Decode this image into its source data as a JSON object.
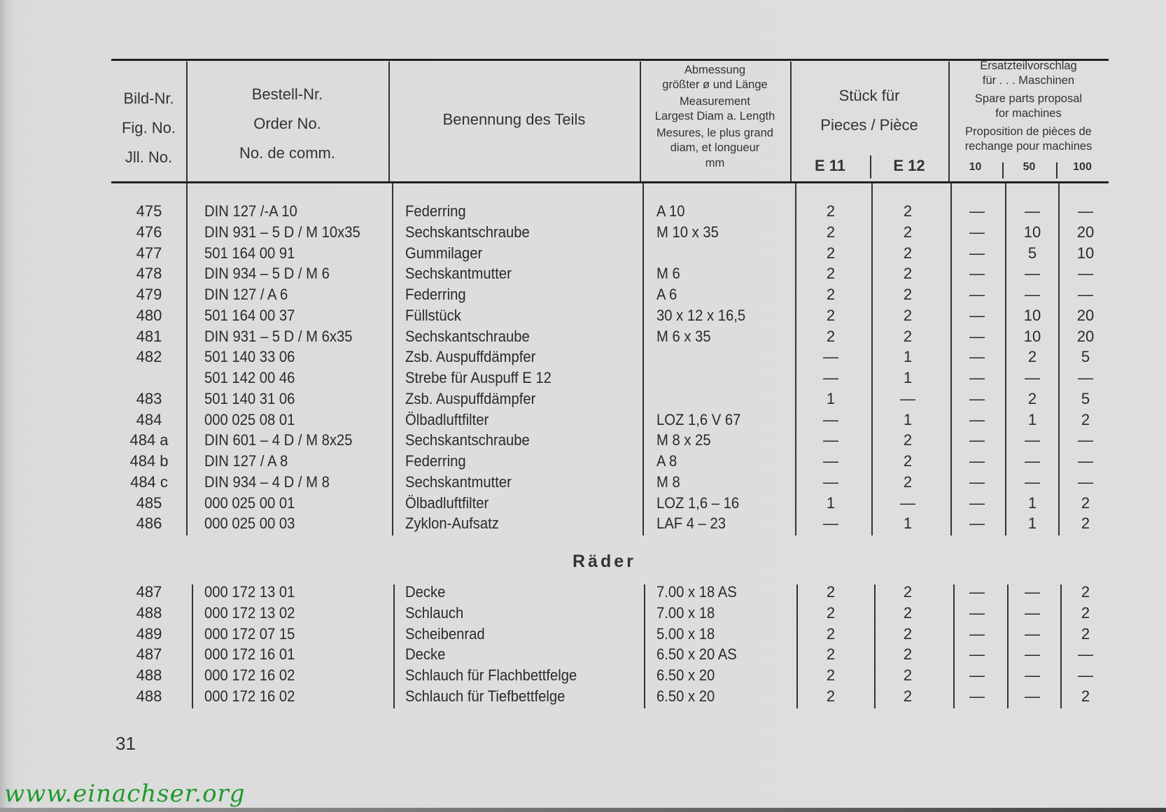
{
  "header": {
    "fig_no": [
      "Bild-Nr.",
      "Fig. No.",
      "Jll. No."
    ],
    "order_no": [
      "Bestell-Nr.",
      "Order No.",
      "No. de comm."
    ],
    "part_name": "Benennung des Teils",
    "measurement": [
      "Abmessung",
      "größter ø und Länge",
      "Measurement",
      "Largest Diam a. Length",
      "Mesures, le plus grand",
      "diam, et longueur",
      "mm"
    ],
    "pieces": [
      "Stück für",
      "Pieces / Pièce"
    ],
    "pieces_cols": [
      "E 11",
      "E 12"
    ],
    "spare": [
      "Ersatzteilvorschlag",
      "für . . . Maschinen",
      "Spare parts proposal",
      "for machines",
      "Proposition de pièces de",
      "rechange pour machines"
    ],
    "spare_cols": [
      "10",
      "50",
      "100"
    ]
  },
  "rows": [
    {
      "fig": "475",
      "order": "DIN 127 /-A 10",
      "name": "Federring",
      "measure": "A 10",
      "e11": "2",
      "e12": "2",
      "p10": "—",
      "p50": "—",
      "p100": "—"
    },
    {
      "fig": "476",
      "order": "DIN 931 – 5 D / M 10x35",
      "name": "Sechskantschraube",
      "measure": "M 10 x 35",
      "e11": "2",
      "e12": "2",
      "p10": "—",
      "p50": "10",
      "p100": "20"
    },
    {
      "fig": "477",
      "order": "501 164 00 91",
      "name": "Gummilager",
      "measure": "",
      "e11": "2",
      "e12": "2",
      "p10": "—",
      "p50": "5",
      "p100": "10"
    },
    {
      "fig": "478",
      "order": "DIN 934 – 5 D / M 6",
      "name": "Sechskantmutter",
      "measure": "M 6",
      "e11": "2",
      "e12": "2",
      "p10": "—",
      "p50": "—",
      "p100": "—"
    },
    {
      "fig": "479",
      "order": "DIN 127 / A 6",
      "name": "Federring",
      "measure": "A 6",
      "e11": "2",
      "e12": "2",
      "p10": "—",
      "p50": "—",
      "p100": "—"
    },
    {
      "fig": "480",
      "order": "501 164 00 37",
      "name": "Füllstück",
      "measure": "30 x 12 x 16,5",
      "e11": "2",
      "e12": "2",
      "p10": "—",
      "p50": "10",
      "p100": "20"
    },
    {
      "fig": "481",
      "order": "DIN 931 – 5 D / M 6x35",
      "name": "Sechskantschraube",
      "measure": "M 6 x 35",
      "e11": "2",
      "e12": "2",
      "p10": "—",
      "p50": "10",
      "p100": "20"
    },
    {
      "fig": "482",
      "order": "501 140 33 06",
      "name": "Zsb. Auspuffdämpfer",
      "measure": "",
      "e11": "—",
      "e12": "1",
      "p10": "—",
      "p50": "2",
      "p100": "5"
    },
    {
      "fig": "",
      "order": "501 142 00 46",
      "name": "Strebe für Auspuff E 12",
      "measure": "",
      "e11": "—",
      "e12": "1",
      "p10": "—",
      "p50": "—",
      "p100": "—"
    },
    {
      "fig": "483",
      "order": "501 140 31 06",
      "name": "Zsb. Auspuffdämpfer",
      "measure": "",
      "e11": "1",
      "e12": "—",
      "p10": "—",
      "p50": "2",
      "p100": "5"
    },
    {
      "fig": "484",
      "order": "000 025 08 01",
      "name": "Ölbadluftfilter",
      "measure": "LOZ 1,6 V 67",
      "e11": "—",
      "e12": "1",
      "p10": "—",
      "p50": "1",
      "p100": "2"
    },
    {
      "fig": "484 a",
      "order": "DIN 601 – 4 D / M 8x25",
      "name": "Sechskantschraube",
      "measure": "M 8 x 25",
      "e11": "—",
      "e12": "2",
      "p10": "—",
      "p50": "—",
      "p100": "—"
    },
    {
      "fig": "484 b",
      "order": "DIN 127 / A 8",
      "name": "Federring",
      "measure": "A 8",
      "e11": "—",
      "e12": "2",
      "p10": "—",
      "p50": "—",
      "p100": "—"
    },
    {
      "fig": "484 c",
      "order": "DIN 934 – 4 D / M 8",
      "name": "Sechskantmutter",
      "measure": "M 8",
      "e11": "—",
      "e12": "2",
      "p10": "—",
      "p50": "—",
      "p100": "—"
    },
    {
      "fig": "485",
      "order": "000 025 00 01",
      "name": "Ölbadluftfilter",
      "measure": "LOZ 1,6 – 16",
      "e11": "1",
      "e12": "—",
      "p10": "—",
      "p50": "1",
      "p100": "2"
    },
    {
      "fig": "486",
      "order": "000 025 00 03",
      "name": "Zyklon-Aufsatz",
      "measure": "LAF 4 – 23",
      "e11": "—",
      "e12": "1",
      "p10": "—",
      "p50": "1",
      "p100": "2"
    }
  ],
  "section_title": "Räder",
  "rows2": [
    {
      "fig": "487",
      "order": "000 172 13 01",
      "name": "Decke",
      "measure": "7.00 x 18 AS",
      "e11": "2",
      "e12": "2",
      "p10": "—",
      "p50": "—",
      "p100": "2"
    },
    {
      "fig": "488",
      "order": "000 172 13 02",
      "name": "Schlauch",
      "measure": "7.00 x 18",
      "e11": "2",
      "e12": "2",
      "p10": "—",
      "p50": "—",
      "p100": "2"
    },
    {
      "fig": "489",
      "order": "000 172 07 15",
      "name": "Scheibenrad",
      "measure": "5.00 x 18",
      "e11": "2",
      "e12": "2",
      "p10": "—",
      "p50": "—",
      "p100": "2"
    },
    {
      "fig": "487",
      "order": "000 172 16 01",
      "name": "Decke",
      "measure": "6.50 x 20 AS",
      "e11": "2",
      "e12": "2",
      "p10": "—",
      "p50": "—",
      "p100": "—"
    },
    {
      "fig": "488",
      "order": "000 172 16 02",
      "name": "Schlauch für Flachbettfelge",
      "measure": "6.50 x 20",
      "e11": "2",
      "e12": "2",
      "p10": "—",
      "p50": "—",
      "p100": "—"
    },
    {
      "fig": "488",
      "order": "000 172 16 02",
      "name": "Schlauch für Tiefbettfelge",
      "measure": "6.50 x 20",
      "e11": "2",
      "e12": "2",
      "p10": "—",
      "p50": "—",
      "p100": "2"
    }
  ],
  "page_number": "31",
  "watermark": "www.einachser.org"
}
